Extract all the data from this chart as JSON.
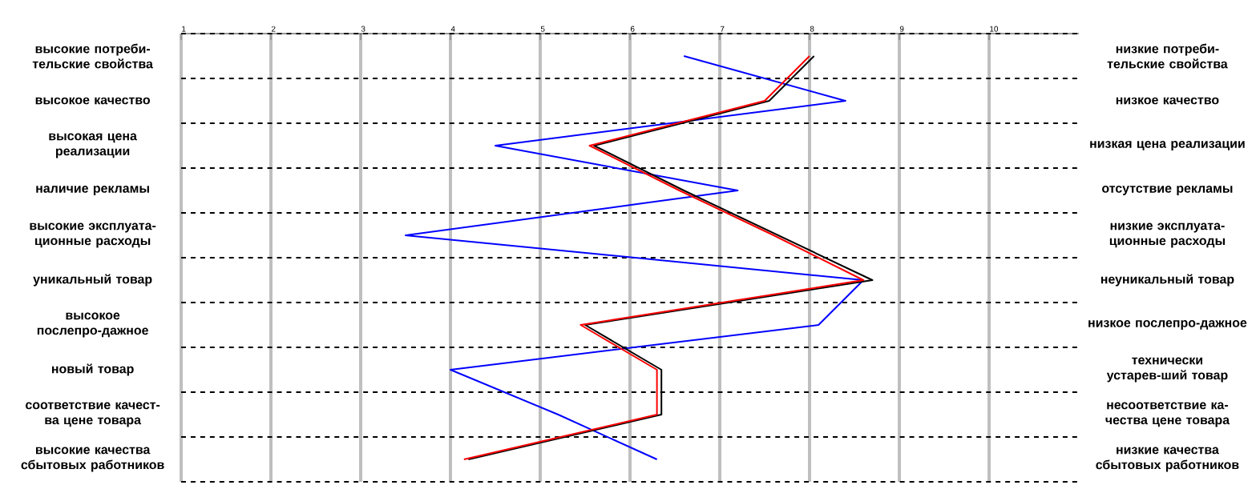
{
  "chart_data": {
    "type": "line",
    "orientation": "horizontal",
    "categories": [
      "высокие потреби-тельские свойства",
      "высокое качество",
      "высокая цена реализации",
      "наличие рекламы",
      "высокие эксплуата-ционные расходы",
      "уникальный товар",
      "высокое послепро-дажное",
      "новый товар",
      "соответствие качест-ва цене товара",
      "высокие качества сбытовых работников"
    ],
    "y2_categories": [
      "низкие потреби-тельские свойства",
      "низкое качество",
      "низкая цена реализации",
      "отсутствие рекламы",
      "низкие эксплуата-ционные расходы",
      "неуникальный товар",
      "низкое послепро-дажное",
      "технически устарев-ший товар",
      "несоответствие ка-чества цене товара",
      "низкие качества сбытовых работников"
    ],
    "xlim": [
      1,
      11
    ],
    "xticks": [
      1,
      2,
      3,
      4,
      5,
      6,
      7,
      8,
      9,
      10
    ],
    "grid": true,
    "series": [
      {
        "color": "#0000ff",
        "values": [
          6.6,
          8.4,
          4.5,
          7.2,
          3.5,
          8.6,
          8.1,
          4.0,
          5.2,
          6.3
        ]
      },
      {
        "color": "#000000",
        "values": [
          8.05,
          7.55,
          5.6,
          6.6,
          7.65,
          8.7,
          5.5,
          6.35,
          6.35,
          4.2
        ]
      },
      {
        "color": "#ff0000",
        "values": [
          8.0,
          7.5,
          5.55,
          6.55,
          7.6,
          8.6,
          5.45,
          6.3,
          6.3,
          4.15
        ]
      }
    ]
  }
}
